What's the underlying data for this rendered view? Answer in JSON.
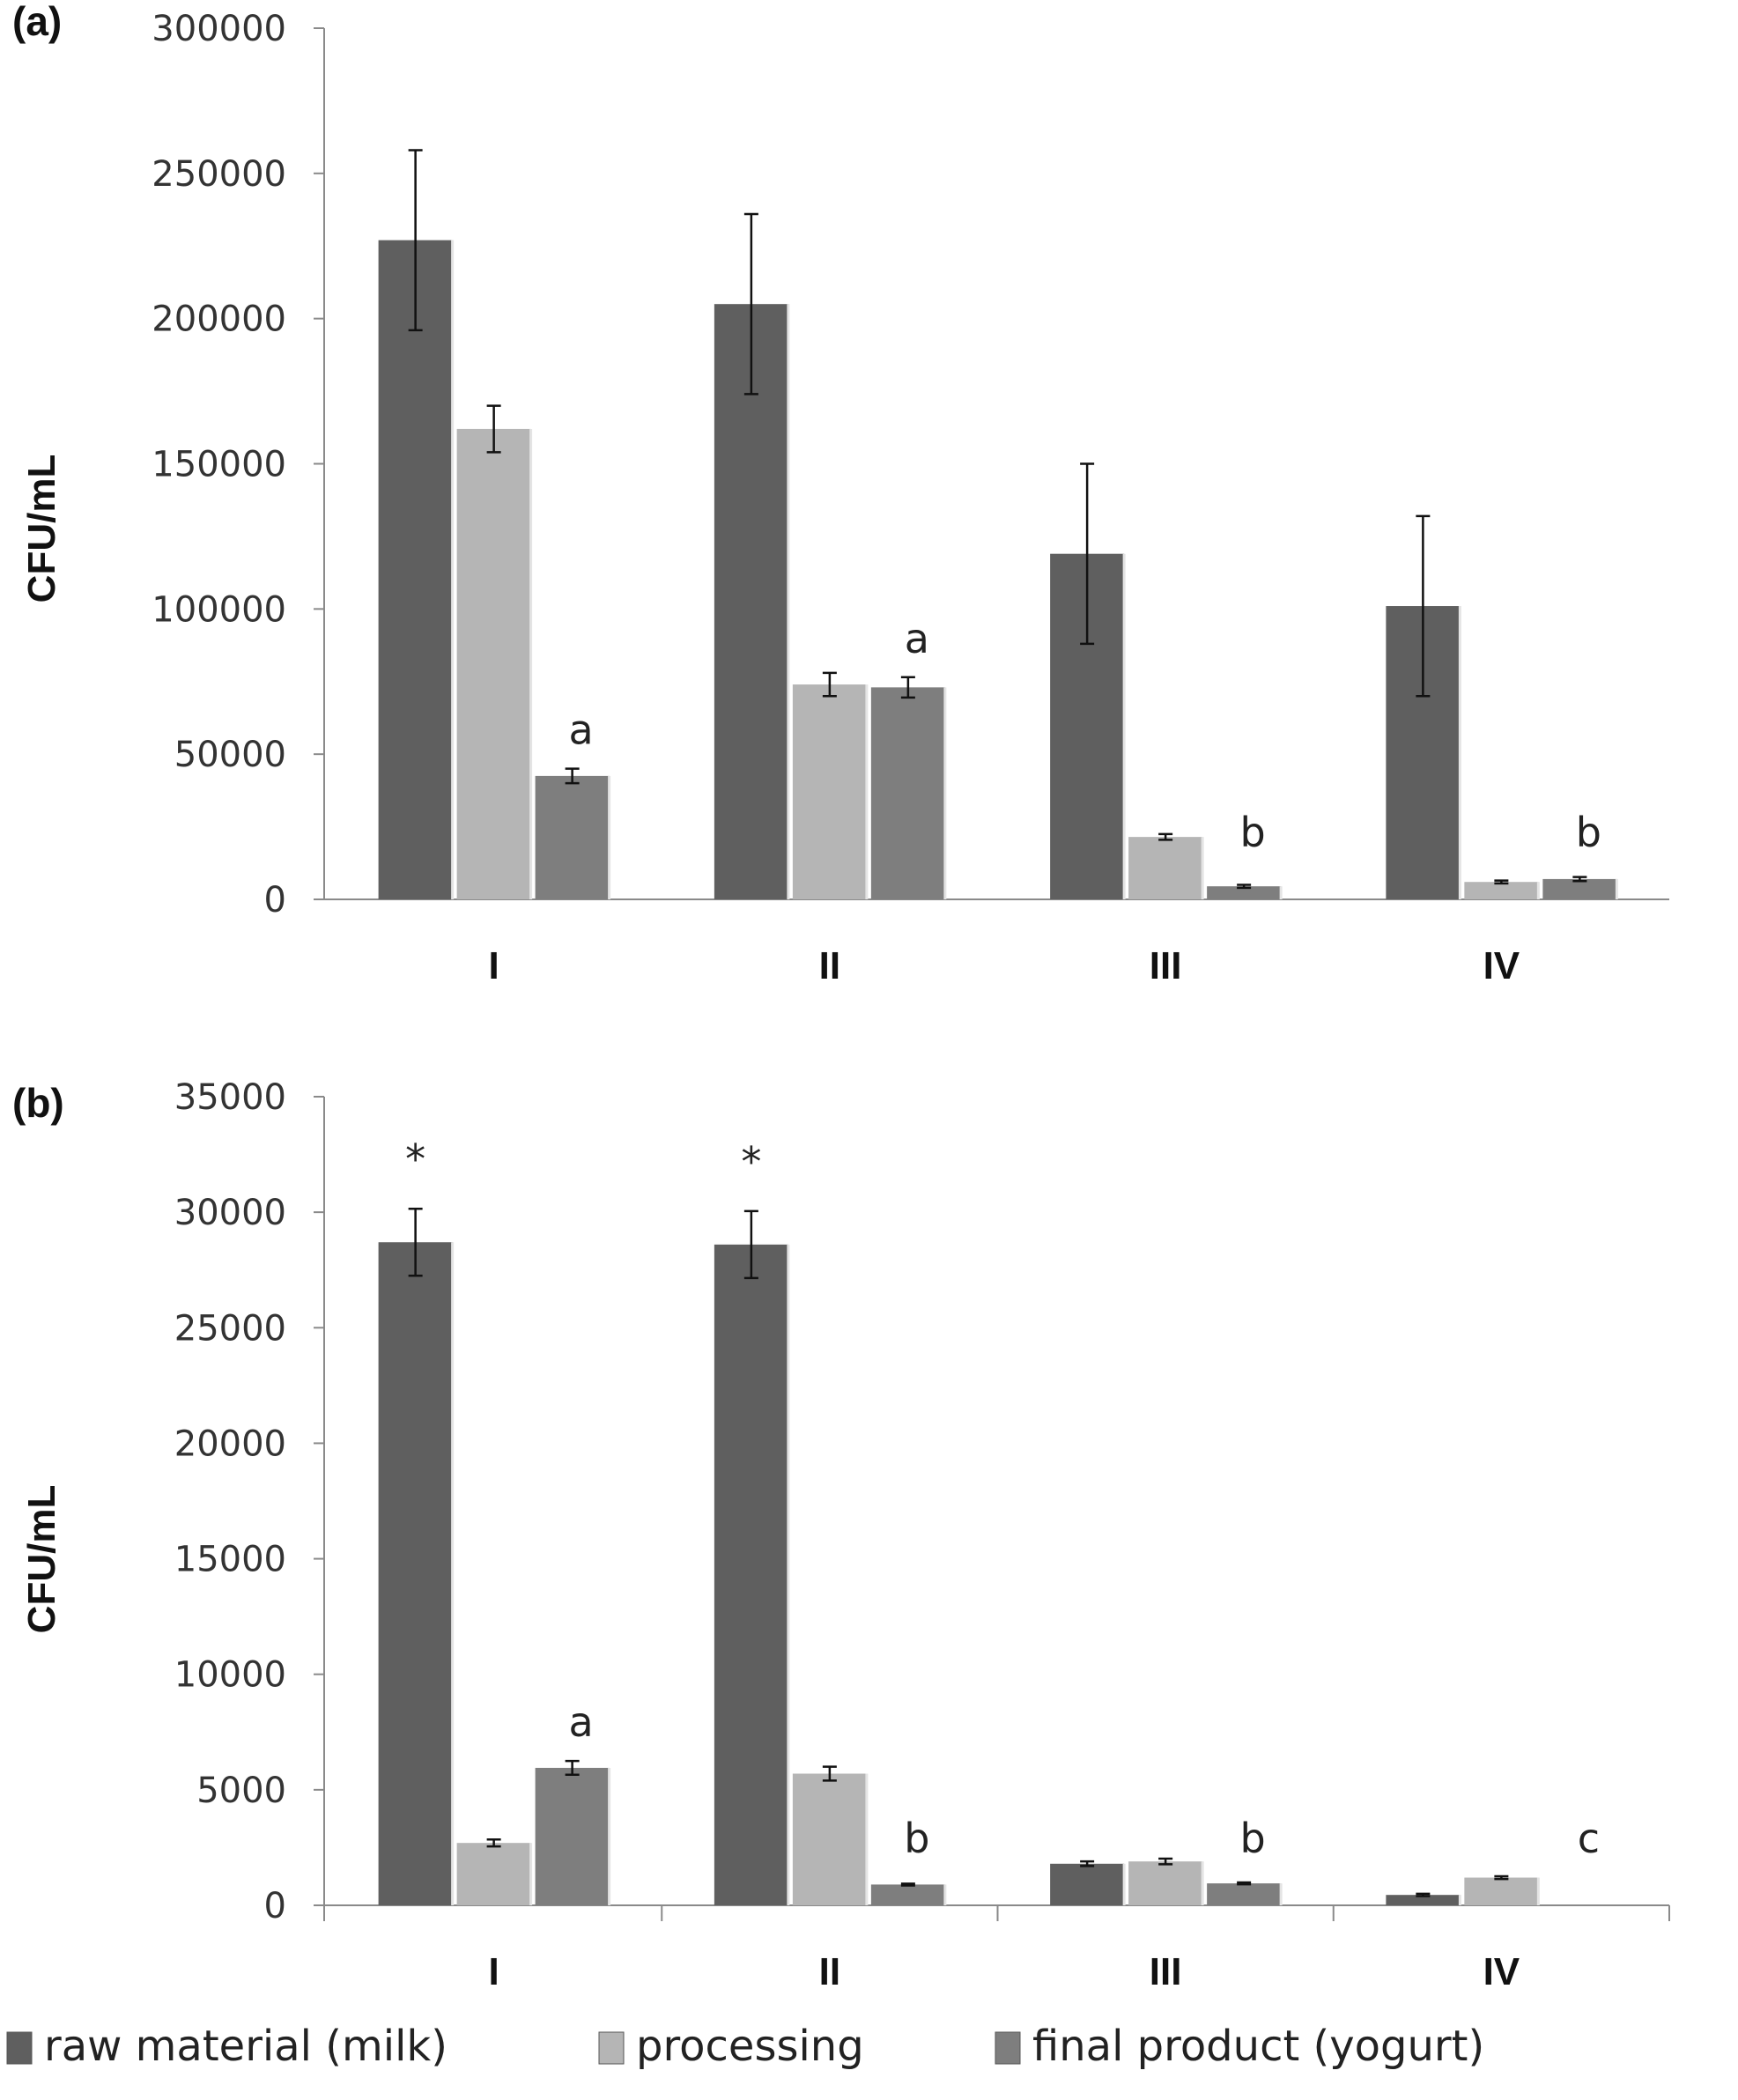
{
  "chart_data": [
    {
      "panel_label": "(a)",
      "type": "bar",
      "categories": [
        "I",
        "II",
        "III",
        "IV"
      ],
      "ylabel": "CFU/mL",
      "ylim": [
        0,
        300000
      ],
      "yticks": [
        0,
        50000,
        100000,
        150000,
        200000,
        250000,
        300000
      ],
      "series": [
        {
          "name": "raw material (milk)",
          "color": "#5f5f5f",
          "values": [
            227000,
            205000,
            119000,
            101000
          ],
          "errors": [
            31000,
            31000,
            31000,
            31000
          ]
        },
        {
          "name": "processing",
          "color": "#b5b5b5",
          "values": [
            162000,
            74000,
            21500,
            6000
          ],
          "errors": [
            8000,
            4000,
            1000,
            500
          ]
        },
        {
          "name": "final product (yogurt)",
          "color": "#7e7e7e",
          "values": [
            42500,
            73000,
            4500,
            7000
          ],
          "errors": [
            2500,
            3500,
            500,
            700
          ]
        }
      ],
      "annotations": [
        {
          "category": "I",
          "series": 2,
          "text": "a"
        },
        {
          "category": "II",
          "series": 2,
          "text": "a"
        },
        {
          "category": "III",
          "series": 2,
          "text": "b"
        },
        {
          "category": "IV",
          "series": 2,
          "text": "b"
        }
      ],
      "grid": false
    },
    {
      "panel_label": "(b)",
      "type": "bar",
      "categories": [
        "I",
        "II",
        "III",
        "IV"
      ],
      "ylabel": "CFU/mL",
      "ylim": [
        0,
        35000
      ],
      "yticks": [
        0,
        5000,
        10000,
        15000,
        20000,
        25000,
        30000,
        35000
      ],
      "series": [
        {
          "name": "raw material (milk)",
          "color": "#5f5f5f",
          "values": [
            28700,
            28600,
            1800,
            450
          ],
          "errors": [
            1450,
            1450,
            100,
            50
          ]
        },
        {
          "name": "processing",
          "color": "#b5b5b5",
          "values": [
            2700,
            5700,
            1900,
            1200
          ],
          "errors": [
            150,
            300,
            120,
            60
          ]
        },
        {
          "name": "final product (yogurt)",
          "color": "#7e7e7e",
          "values": [
            5950,
            900,
            950,
            0
          ],
          "errors": [
            300,
            40,
            40,
            0
          ]
        }
      ],
      "annotations": [
        {
          "category": "I",
          "series": 0,
          "text": "*"
        },
        {
          "category": "II",
          "series": 0,
          "text": "*"
        },
        {
          "category": "I",
          "series": 2,
          "text": "a"
        },
        {
          "category": "II",
          "series": 2,
          "text": "b"
        },
        {
          "category": "III",
          "series": 2,
          "text": "b"
        },
        {
          "category": "IV",
          "series": 2,
          "text": "c"
        }
      ],
      "grid": false
    }
  ],
  "legend": {
    "placement": "bottom",
    "items": [
      {
        "label": "raw material (milk)",
        "color": "#5f5f5f"
      },
      {
        "label": "processing",
        "color": "#b5b5b5"
      },
      {
        "label": "final product (yogurt)",
        "color": "#7e7e7e"
      }
    ]
  }
}
